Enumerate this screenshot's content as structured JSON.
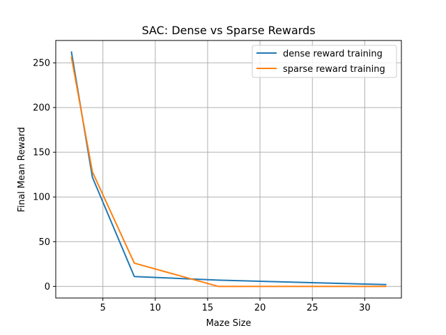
{
  "chart_data": {
    "type": "line",
    "title": "SAC: Dense vs Sparse Rewards",
    "xlabel": "Maze Size",
    "ylabel": "Final Mean Reward",
    "xlim": [
      0.5,
      33.5
    ],
    "ylim": [
      -13,
      275
    ],
    "xticks": [
      5,
      10,
      15,
      20,
      25,
      30
    ],
    "yticks": [
      0,
      50,
      100,
      150,
      200,
      250
    ],
    "grid": true,
    "legend_position": "top-right",
    "x": [
      2,
      4,
      8,
      16,
      32
    ],
    "series": [
      {
        "name": "dense reward training",
        "color": "#1f77b4",
        "values": [
          262,
          122,
          11,
          7,
          2
        ]
      },
      {
        "name": "sparse reward training",
        "color": "#ff7f0e",
        "values": [
          256,
          128,
          26,
          0,
          0
        ]
      }
    ]
  }
}
